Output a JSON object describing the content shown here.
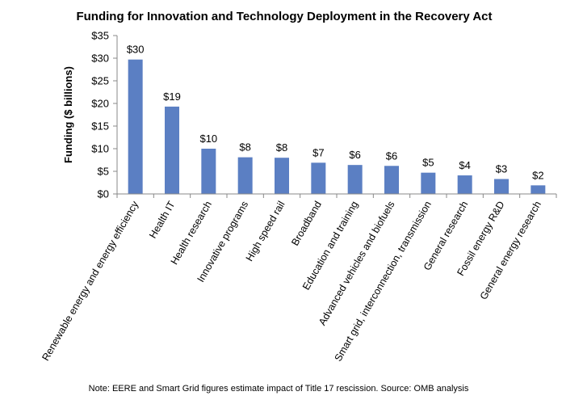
{
  "chart_data": {
    "type": "bar",
    "title": "Funding for Innovation and Technology Deployment in the Recovery Act",
    "ylabel": "Funding ($ billions)",
    "ylim": [
      0,
      35
    ],
    "yticks": [
      0,
      5,
      10,
      15,
      20,
      25,
      30,
      35
    ],
    "ytick_labels": [
      "$0",
      "$5",
      "$10",
      "$15",
      "$20",
      "$25",
      "$30",
      "$35"
    ],
    "categories": [
      "Renewable energy and energy efficiency",
      "Health IT",
      "Health research",
      "Innovative programs",
      "High speed rail",
      "Broadband",
      "Education and training",
      "Advanced vehicles and biofuels",
      "Smart grid, interconnection, transmission",
      "General research",
      "Fossil energy R&D",
      "General energy research"
    ],
    "values": [
      29.7,
      19.3,
      10.0,
      8.1,
      8.0,
      6.9,
      6.4,
      6.2,
      4.7,
      4.1,
      3.3,
      1.9
    ],
    "data_labels": [
      "$30",
      "$19",
      "$10",
      "$8",
      "$8",
      "$7",
      "$6",
      "$6",
      "$5",
      "$4",
      "$3",
      "$2"
    ],
    "bar_color": "#5b7fc3",
    "grid": false,
    "legend": "none"
  },
  "footnote": "Note: EERE and Smart Grid figures estimate impact of Title 17 rescission.  Source: OMB analysis"
}
